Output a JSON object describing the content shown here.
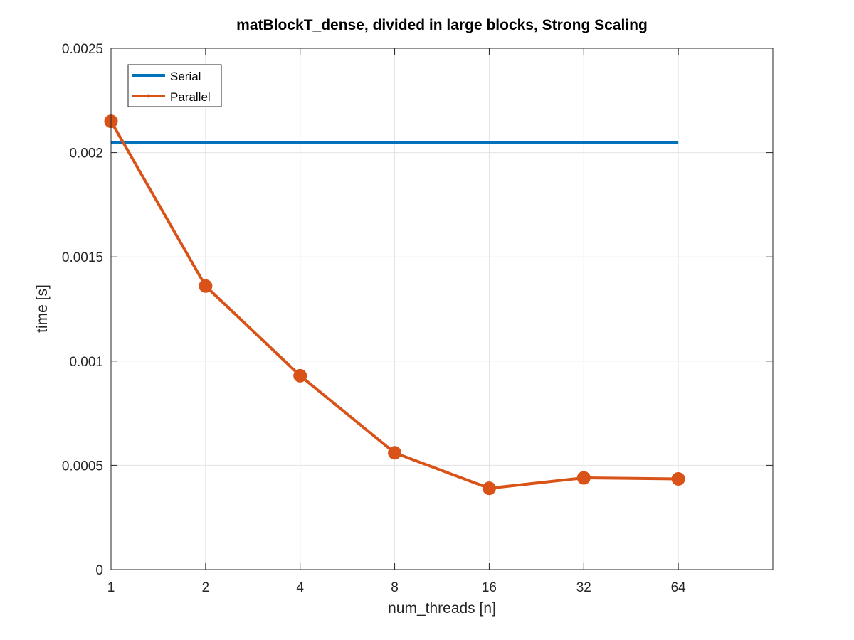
{
  "chart_data": {
    "type": "line",
    "title": "matBlockT_dense, divided in large blocks, Strong Scaling",
    "xlabel": "num_threads [n]",
    "ylabel": "time [s]",
    "x_scale": "log2",
    "x": [
      1,
      2,
      4,
      8,
      16,
      32,
      64
    ],
    "x_tick_labels": [
      "1",
      "2",
      "4",
      "8",
      "16",
      "32",
      "64"
    ],
    "xlim": [
      1,
      128
    ],
    "ylim": [
      0,
      0.0025
    ],
    "y_ticks": [
      0,
      0.0005,
      0.001,
      0.0015,
      0.002,
      0.0025
    ],
    "y_tick_labels": [
      "0",
      "0.0005",
      "0.001",
      "0.0015",
      "0.002",
      "0.0025"
    ],
    "grid": true,
    "legend_position": "top-left",
    "series": [
      {
        "name": "Serial",
        "color": "#0072bd",
        "marker": "none",
        "values": [
          0.00205,
          0.00205,
          0.00205,
          0.00205,
          0.00205,
          0.00205,
          0.00205
        ]
      },
      {
        "name": "Parallel",
        "color": "#d95319",
        "marker": "circle",
        "values": [
          0.00215,
          0.00136,
          0.00093,
          0.00056,
          0.00039,
          0.00044,
          0.000435
        ]
      }
    ]
  }
}
